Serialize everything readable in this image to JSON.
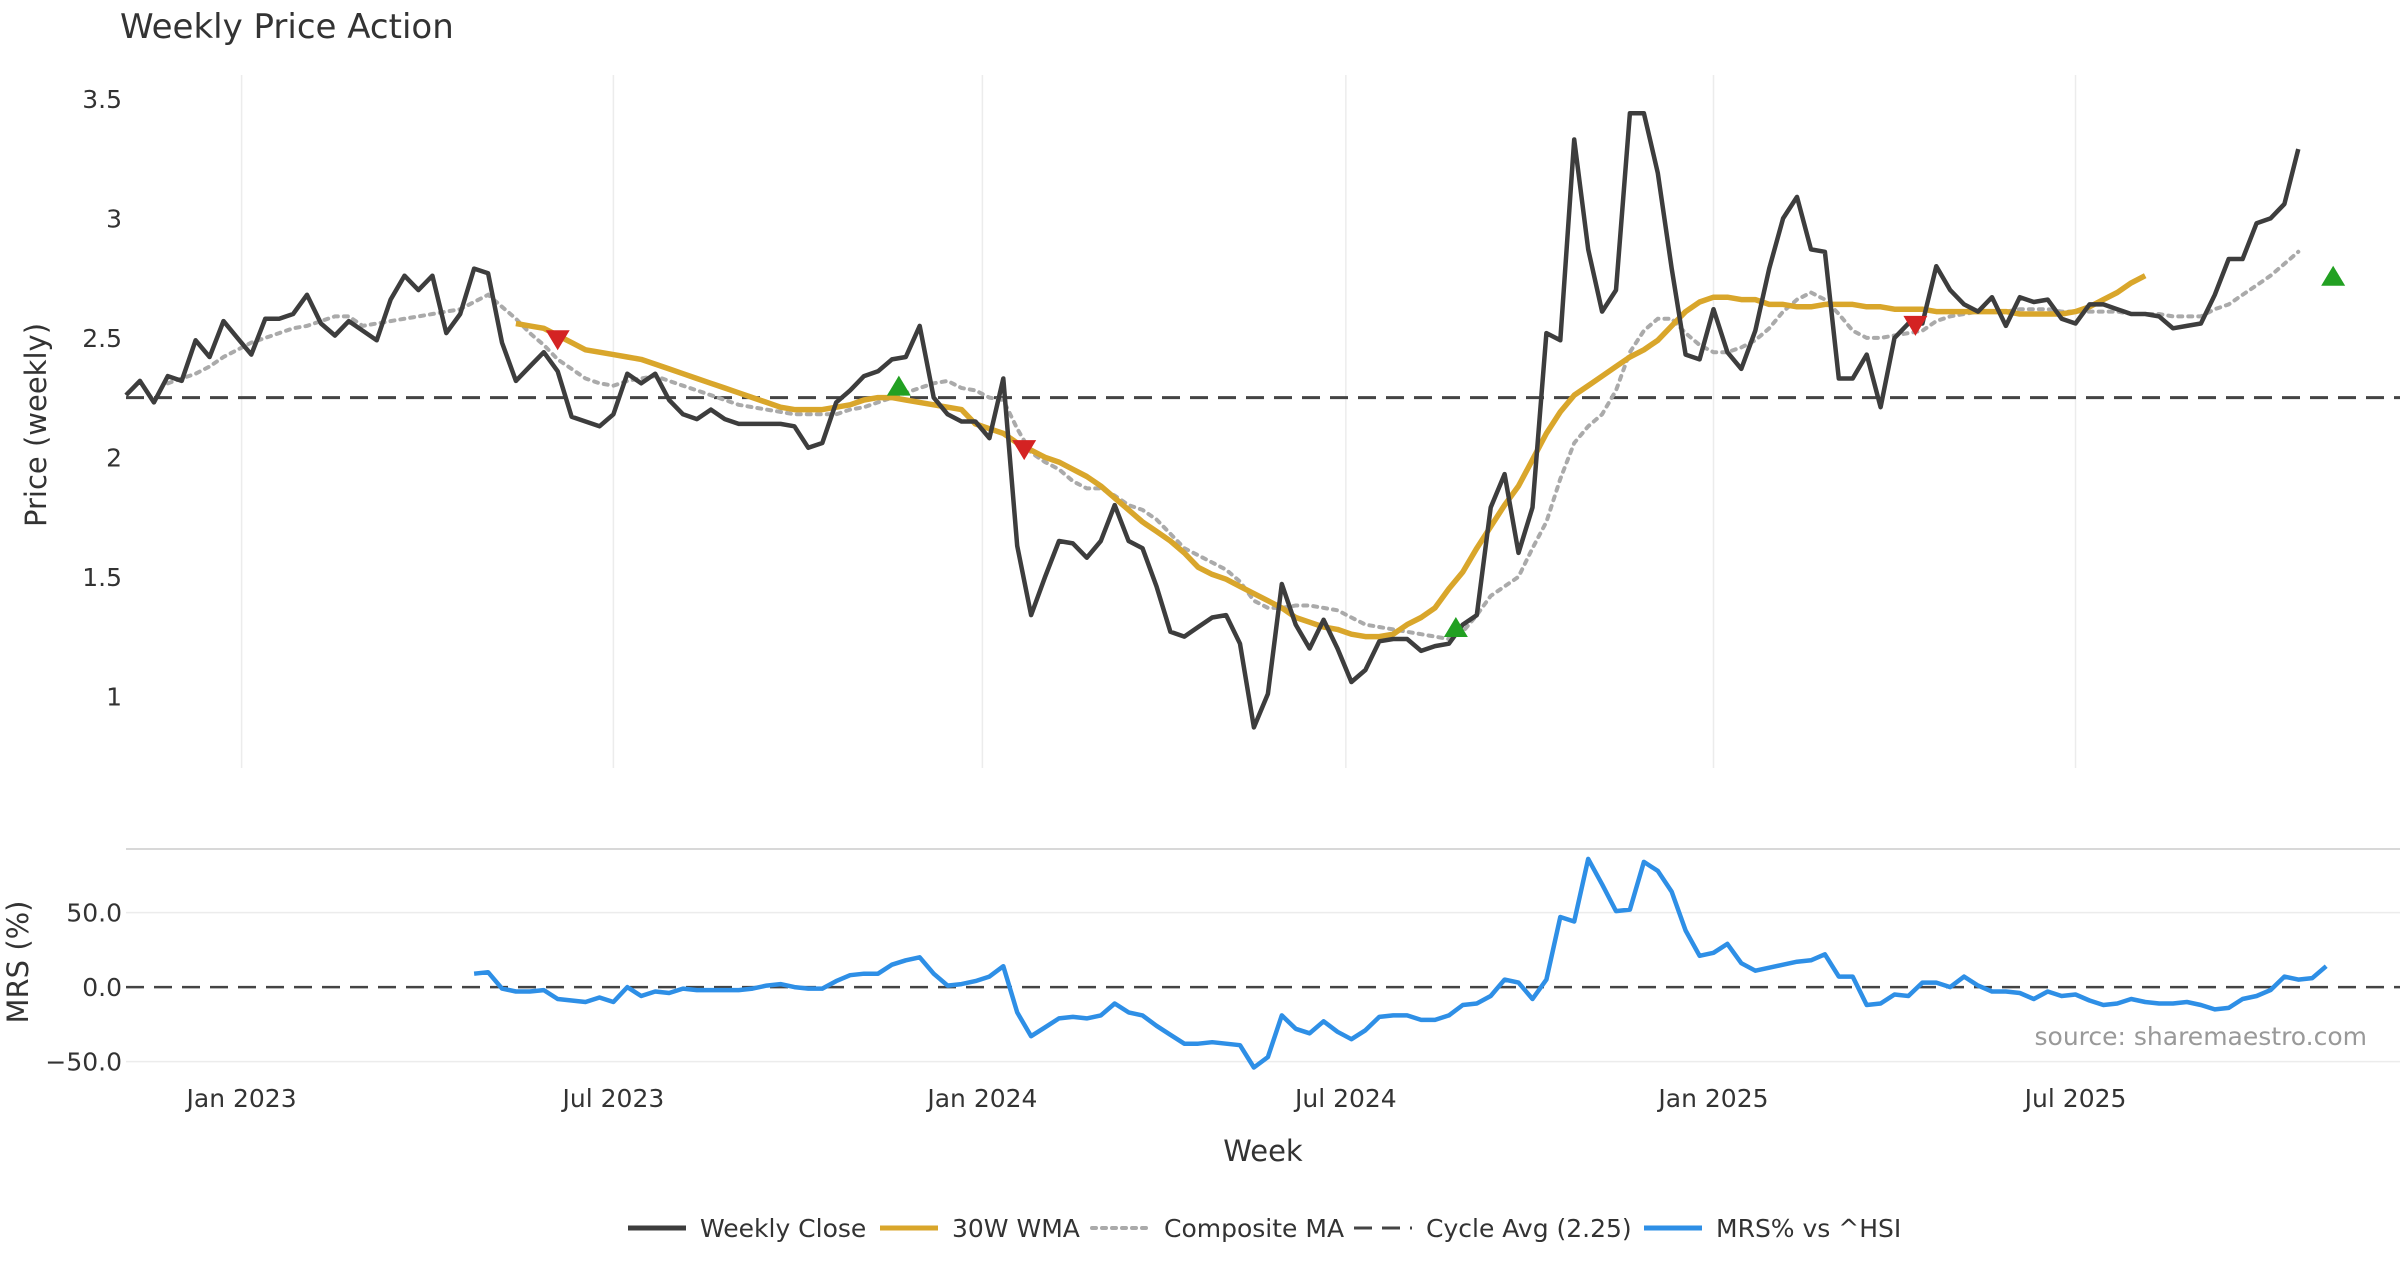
{
  "chart_data": {
    "type": "line",
    "title": "Weekly Price Action",
    "source": "source: sharemaestro.com",
    "xlabel": "Week",
    "x_ticks": [
      {
        "label": "Jan 2023",
        "t": 8.3
      },
      {
        "label": "Jul 2023",
        "t": 35.0
      },
      {
        "label": "Jan 2024",
        "t": 61.5
      },
      {
        "label": "Jul 2024",
        "t": 87.6
      },
      {
        "label": "Jan 2025",
        "t": 114.0
      },
      {
        "label": "Jul 2025",
        "t": 140.0
      }
    ],
    "x_range": [
      0,
      163.3
    ],
    "price_panel": {
      "ylabel": "Price (weekly)",
      "ylim": [
        0.7,
        3.6
      ],
      "y_ticks": [
        1,
        1.5,
        2,
        2.5,
        3,
        3.5
      ],
      "cycle_avg": 2.25,
      "weekly_close": [
        2.26,
        2.32,
        2.23,
        2.34,
        2.32,
        2.49,
        2.42,
        2.57,
        2.5,
        2.43,
        2.58,
        2.58,
        2.6,
        2.68,
        2.56,
        2.51,
        2.57,
        2.53,
        2.49,
        2.66,
        2.76,
        2.7,
        2.76,
        2.52,
        2.6,
        2.79,
        2.77,
        2.48,
        2.32,
        2.38,
        2.44,
        2.36,
        2.17,
        2.15,
        2.13,
        2.18,
        2.35,
        2.31,
        2.35,
        2.24,
        2.18,
        2.16,
        2.2,
        2.16,
        2.14,
        2.14,
        2.14,
        2.14,
        2.13,
        2.04,
        2.06,
        2.23,
        2.28,
        2.34,
        2.36,
        2.41,
        2.42,
        2.55,
        2.25,
        2.18,
        2.15,
        2.15,
        2.08,
        2.33,
        1.63,
        1.34,
        1.5,
        1.65,
        1.64,
        1.58,
        1.65,
        1.8,
        1.65,
        1.62,
        1.46,
        1.27,
        1.25,
        1.29,
        1.33,
        1.34,
        1.22,
        0.87,
        1.01,
        1.47,
        1.3,
        1.2,
        1.32,
        1.2,
        1.06,
        1.11,
        1.23,
        1.24,
        1.24,
        1.19,
        1.21,
        1.22,
        1.3,
        1.34,
        1.79,
        1.93,
        1.6,
        1.79,
        2.52,
        2.49,
        3.33,
        2.87,
        2.61,
        2.7,
        3.44,
        3.44,
        3.19,
        2.79,
        2.43,
        2.41,
        2.62,
        2.44,
        2.37,
        2.53,
        2.79,
        3.0,
        3.09,
        2.87,
        2.86,
        2.33,
        2.33,
        2.43,
        2.21,
        2.5,
        2.56,
        2.56,
        2.8,
        2.7,
        2.64,
        2.61,
        2.67,
        2.55,
        2.67,
        2.65,
        2.66,
        2.58,
        2.56,
        2.64,
        2.64,
        2.62,
        2.6,
        2.6,
        2.59,
        2.54,
        2.55,
        2.56,
        2.68,
        2.83,
        2.83,
        2.98,
        3.0,
        3.06,
        3.29
      ],
      "wma_start": 28,
      "wma_30w": [
        2.56,
        2.55,
        2.54,
        2.51,
        2.48,
        2.45,
        2.44,
        2.43,
        2.42,
        2.41,
        2.39,
        2.37,
        2.35,
        2.33,
        2.31,
        2.29,
        2.27,
        2.25,
        2.23,
        2.21,
        2.2,
        2.2,
        2.2,
        2.21,
        2.22,
        2.24,
        2.25,
        2.25,
        2.24,
        2.23,
        2.22,
        2.21,
        2.2,
        2.14,
        2.12,
        2.1,
        2.06,
        2.03,
        2.0,
        1.98,
        1.95,
        1.92,
        1.88,
        1.83,
        1.78,
        1.73,
        1.69,
        1.65,
        1.6,
        1.54,
        1.51,
        1.49,
        1.46,
        1.43,
        1.4,
        1.37,
        1.33,
        1.31,
        1.29,
        1.28,
        1.26,
        1.25,
        1.25,
        1.26,
        1.3,
        1.33,
        1.37,
        1.45,
        1.52,
        1.62,
        1.71,
        1.8,
        1.88,
        1.99,
        2.1,
        2.19,
        2.26,
        2.3,
        2.34,
        2.38,
        2.42,
        2.45,
        2.49,
        2.55,
        2.61,
        2.65,
        2.67,
        2.67,
        2.66,
        2.66,
        2.64,
        2.64,
        2.63,
        2.63,
        2.64,
        2.64,
        2.64,
        2.63,
        2.63,
        2.62,
        2.62,
        2.62,
        2.61,
        2.61,
        2.61,
        2.61,
        2.61,
        2.61,
        2.6,
        2.6,
        2.6,
        2.6,
        2.61,
        2.63,
        2.66,
        2.69,
        2.73,
        2.76
      ],
      "composite_start": 3,
      "composite_ma": [
        2.31,
        2.33,
        2.35,
        2.38,
        2.42,
        2.45,
        2.48,
        2.5,
        2.52,
        2.54,
        2.55,
        2.57,
        2.59,
        2.59,
        2.55,
        2.56,
        2.57,
        2.58,
        2.59,
        2.6,
        2.61,
        2.62,
        2.65,
        2.68,
        2.63,
        2.58,
        2.52,
        2.47,
        2.41,
        2.37,
        2.33,
        2.31,
        2.3,
        2.32,
        2.33,
        2.34,
        2.32,
        2.3,
        2.28,
        2.26,
        2.24,
        2.22,
        2.21,
        2.2,
        2.19,
        2.18,
        2.18,
        2.18,
        2.18,
        2.2,
        2.21,
        2.23,
        2.25,
        2.27,
        2.29,
        2.31,
        2.32,
        2.29,
        2.28,
        2.25,
        2.24,
        2.12,
        2.02,
        1.98,
        1.95,
        1.9,
        1.87,
        1.87,
        1.84,
        1.8,
        1.78,
        1.74,
        1.68,
        1.62,
        1.59,
        1.56,
        1.53,
        1.48,
        1.4,
        1.37,
        1.37,
        1.38,
        1.38,
        1.37,
        1.36,
        1.33,
        1.3,
        1.29,
        1.28,
        1.27,
        1.26,
        1.25,
        1.24,
        1.27,
        1.34,
        1.42,
        1.46,
        1.5,
        1.62,
        1.73,
        1.91,
        2.06,
        2.13,
        2.18,
        2.28,
        2.44,
        2.53,
        2.58,
        2.58,
        2.52,
        2.47,
        2.44,
        2.44,
        2.46,
        2.49,
        2.54,
        2.61,
        2.66,
        2.69,
        2.66,
        2.6,
        2.53,
        2.5,
        2.5,
        2.51,
        2.52,
        2.53,
        2.57,
        2.59,
        2.6,
        2.61,
        2.61,
        2.61,
        2.62,
        2.62,
        2.62,
        2.61,
        2.61,
        2.61,
        2.61,
        2.61,
        2.6,
        2.6,
        2.6,
        2.59,
        2.59,
        2.59,
        2.62,
        2.64,
        2.68,
        2.72,
        2.76,
        2.81,
        2.86
      ],
      "buy_markers": [
        {
          "t": 55.5,
          "v": 2.3
        },
        {
          "t": 95.5,
          "v": 1.29
        },
        {
          "t": 158.5,
          "v": 2.76
        }
      ],
      "sell_markers": [
        {
          "t": 31.0,
          "v": 2.49
        },
        {
          "t": 64.5,
          "v": 2.03
        },
        {
          "t": 128.5,
          "v": 2.55
        }
      ]
    },
    "mrs_panel": {
      "ylabel": "MRS (%)",
      "ylim": [
        -57,
        92
      ],
      "y_ticks": [
        {
          "v": 50,
          "label": "50.0"
        },
        {
          "v": 0,
          "label": "0.0"
        },
        {
          "v": -50,
          "label": "−50.0"
        }
      ],
      "start": 25,
      "values": [
        9,
        10,
        -1,
        -3,
        -3,
        -2,
        -8,
        -9,
        -10,
        -7,
        -10,
        0,
        -6,
        -3,
        -4,
        -1,
        -2,
        -2,
        -2,
        -2,
        -1,
        1,
        2,
        0,
        -1,
        -1,
        4,
        8,
        9,
        9,
        15,
        18,
        20,
        9,
        1,
        2,
        4,
        7,
        14,
        -17,
        -33,
        -27,
        -21,
        -20,
        -21,
        -19,
        -11,
        -17,
        -19,
        -26,
        -32,
        -38,
        -38,
        -37,
        -38,
        -39,
        -54,
        -47,
        -19,
        -28,
        -31,
        -23,
        -30,
        -35,
        -29,
        -20,
        -19,
        -19,
        -22,
        -22,
        -19,
        -12,
        -11,
        -6,
        5,
        3,
        -8,
        5,
        47,
        44,
        86,
        69,
        51,
        52,
        84,
        78,
        64,
        38,
        21,
        23,
        29,
        16,
        11,
        13,
        15,
        17,
        18,
        22,
        7,
        7,
        -12,
        -11,
        -5,
        -6,
        3,
        3,
        0,
        7,
        1,
        -3,
        -3,
        -4,
        -8,
        -3,
        -6,
        -5,
        -9,
        -12,
        -11,
        -8,
        -10,
        -11,
        -11,
        -10,
        -12,
        -15,
        -14,
        -8,
        -6,
        -2,
        7,
        5,
        6,
        14
      ]
    },
    "legend": [
      {
        "label": "Weekly Close",
        "style": "solid",
        "color": "#3d3d3d"
      },
      {
        "label": "30W WMA",
        "style": "solid",
        "color": "#d9a62b"
      },
      {
        "label": "Composite MA",
        "style": "dotted",
        "color": "#aaaaaa"
      },
      {
        "label": "Cycle Avg (2.25)",
        "style": "dashed",
        "color": "#444444"
      },
      {
        "label": "MRS% vs ^HSI",
        "style": "solid",
        "color": "#2e8fe6"
      }
    ],
    "colors": {
      "close": "#3d3d3d",
      "wma": "#d9a62b",
      "composite": "#aaaaaa",
      "cycle": "#444444",
      "mrs": "#2e8fe6",
      "buy": "#22a022",
      "sell": "#d42323",
      "grid": "#ececec",
      "text": "#333333",
      "source": "#999999"
    }
  }
}
